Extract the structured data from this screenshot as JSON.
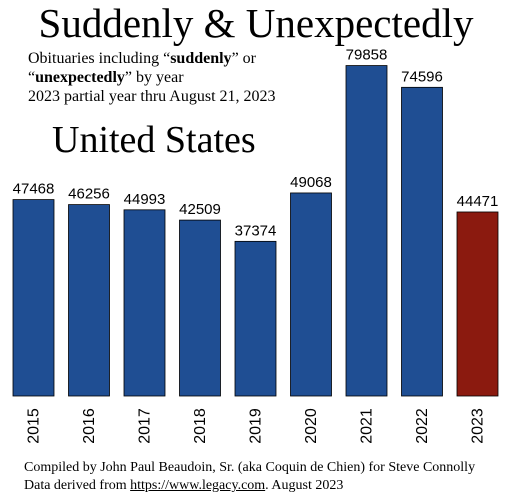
{
  "title": "Suddenly & Unexpectedly",
  "subtitle": {
    "line1_prefix": "Obituaries including “",
    "line1_bold": "suddenly",
    "line1_suffix": "” or",
    "line2_prefix": "“",
    "line2_bold": "unexpectedly",
    "line2_suffix": "” by year",
    "line3": "2023 partial year thru August 21, 2023"
  },
  "region": "United States",
  "credits": {
    "line1": "Compiled by John Paul Beaudoin, Sr. (aka Coquin de Chien) for Steve Connolly",
    "line2_prefix": "Data derived from ",
    "line2_link": "https://www.legacy.com",
    "line2_suffix": ". August 2023"
  },
  "colors": {
    "bar": "#1f4e93",
    "highlight_bar": "#8b1a0f",
    "bar_outline": "#000000"
  },
  "chart_data": {
    "type": "bar",
    "title": "Suddenly & Unexpectedly",
    "categories": [
      "2015",
      "2016",
      "2017",
      "2018",
      "2019",
      "2020",
      "2021",
      "2022",
      "2023"
    ],
    "values": [
      47468,
      46256,
      44993,
      42509,
      37374,
      49068,
      79858,
      74596,
      44471
    ],
    "highlight_category": "2023",
    "data_labels": true,
    "grid": false,
    "ylim": [
      0,
      80000
    ]
  }
}
